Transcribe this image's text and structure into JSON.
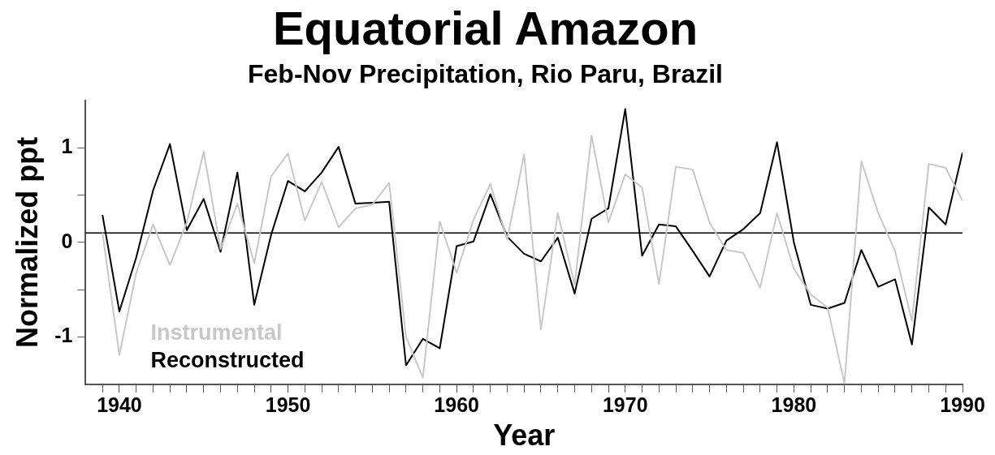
{
  "chart_data": {
    "type": "line",
    "title": "Equatorial Amazon",
    "subtitle": "Feb-Nov Precipitation, Rio Paru, Brazil",
    "xlabel": "Year",
    "ylabel": "Normalized ppt",
    "x": [
      1939,
      1940,
      1941,
      1942,
      1943,
      1944,
      1945,
      1946,
      1947,
      1948,
      1949,
      1950,
      1951,
      1952,
      1953,
      1954,
      1955,
      1956,
      1957,
      1958,
      1959,
      1960,
      1961,
      1962,
      1963,
      1964,
      1965,
      1966,
      1967,
      1968,
      1969,
      1970,
      1971,
      1972,
      1973,
      1974,
      1975,
      1976,
      1977,
      1978,
      1979,
      1980,
      1981,
      1982,
      1983,
      1984,
      1985,
      1986,
      1987,
      1988,
      1989,
      1990
    ],
    "series": [
      {
        "name": "Instrumental",
        "color": "#c8c8c8",
        "values": [
          0.1,
          -1.19,
          -0.32,
          0.19,
          -0.24,
          0.21,
          0.96,
          -0.07,
          0.41,
          -0.22,
          0.7,
          0.94,
          0.23,
          0.64,
          0.16,
          0.36,
          0.4,
          0.63,
          -1.0,
          -1.43,
          0.22,
          -0.32,
          0.24,
          0.62,
          0.03,
          0.93,
          -0.92,
          0.31,
          -0.45,
          1.13,
          0.21,
          0.72,
          0.58,
          -0.44,
          0.8,
          0.77,
          0.21,
          -0.08,
          -0.11,
          -0.48,
          0.31,
          -0.28,
          -0.55,
          -0.69,
          -1.49,
          0.86,
          0.31,
          -0.09,
          -0.83,
          0.83,
          0.79,
          0.44
        ]
      },
      {
        "name": "Reconstructed",
        "color": "#000000",
        "values": [
          0.29,
          -0.73,
          -0.16,
          0.55,
          1.04,
          0.13,
          0.46,
          -0.1,
          0.74,
          -0.66,
          0.08,
          0.65,
          0.54,
          0.74,
          1.01,
          0.41,
          0.42,
          0.43,
          -1.3,
          -1.02,
          -1.12,
          -0.04,
          0.01,
          0.51,
          0.06,
          -0.12,
          -0.2,
          0.05,
          -0.54,
          0.25,
          0.36,
          1.41,
          -0.14,
          0.19,
          0.17,
          -0.09,
          -0.36,
          0.02,
          0.14,
          0.31,
          1.06,
          0.0,
          -0.66,
          -0.7,
          -0.64,
          -0.08,
          -0.47,
          -0.39,
          -1.08,
          0.37,
          0.19,
          0.95
        ]
      }
    ],
    "xlim": [
      1938,
      1990
    ],
    "xticks": [
      {
        "value": 1939,
        "label": null
      },
      1940,
      {
        "value": 1941,
        "label": null
      },
      {
        "value": 1942,
        "label": null
      },
      {
        "value": 1943,
        "label": null
      },
      {
        "value": 1944,
        "label": null
      },
      {
        "value": 1945,
        "label": null
      },
      {
        "value": 1946,
        "label": null
      },
      {
        "value": 1947,
        "label": null
      },
      {
        "value": 1948,
        "label": null
      },
      {
        "value": 1949,
        "label": null
      },
      1950,
      {
        "value": 1951,
        "label": null
      },
      {
        "value": 1952,
        "label": null
      },
      {
        "value": 1953,
        "label": null
      },
      {
        "value": 1954,
        "label": null
      },
      {
        "value": 1955,
        "label": null
      },
      {
        "value": 1956,
        "label": null
      },
      {
        "value": 1957,
        "label": null
      },
      {
        "value": 1958,
        "label": null
      },
      {
        "value": 1959,
        "label": null
      },
      1960,
      {
        "value": 1961,
        "label": null
      },
      {
        "value": 1962,
        "label": null
      },
      {
        "value": 1963,
        "label": null
      },
      {
        "value": 1964,
        "label": null
      },
      {
        "value": 1965,
        "label": null
      },
      {
        "value": 1966,
        "label": null
      },
      {
        "value": 1967,
        "label": null
      },
      {
        "value": 1968,
        "label": null
      },
      {
        "value": 1969,
        "label": null
      },
      1970,
      {
        "value": 1971,
        "label": null
      },
      {
        "value": 1972,
        "label": null
      },
      {
        "value": 1973,
        "label": null
      },
      {
        "value": 1974,
        "label": null
      },
      {
        "value": 1975,
        "label": null
      },
      {
        "value": 1976,
        "label": null
      },
      {
        "value": 1977,
        "label": null
      },
      {
        "value": 1978,
        "label": null
      },
      {
        "value": 1979,
        "label": null
      },
      1980,
      {
        "value": 1981,
        "label": null
      },
      {
        "value": 1982,
        "label": null
      },
      {
        "value": 1983,
        "label": null
      },
      {
        "value": 1984,
        "label": null
      },
      {
        "value": 1985,
        "label": null
      },
      {
        "value": 1986,
        "label": null
      },
      {
        "value": 1987,
        "label": null
      },
      {
        "value": 1988,
        "label": null
      },
      {
        "value": 1989,
        "label": null
      },
      1990
    ],
    "ylim": [
      -1.5,
      1.5
    ],
    "yticks": [
      -1,
      {
        "value": -0.5,
        "label": null
      },
      0,
      {
        "value": 0.5,
        "label": null
      },
      1
    ],
    "ref_lines": [
      {
        "axis": "y",
        "value": 0.1,
        "color": "#000000"
      }
    ],
    "legend": "bottom left",
    "grid": false,
    "marker": "none",
    "line_style": "solid"
  }
}
